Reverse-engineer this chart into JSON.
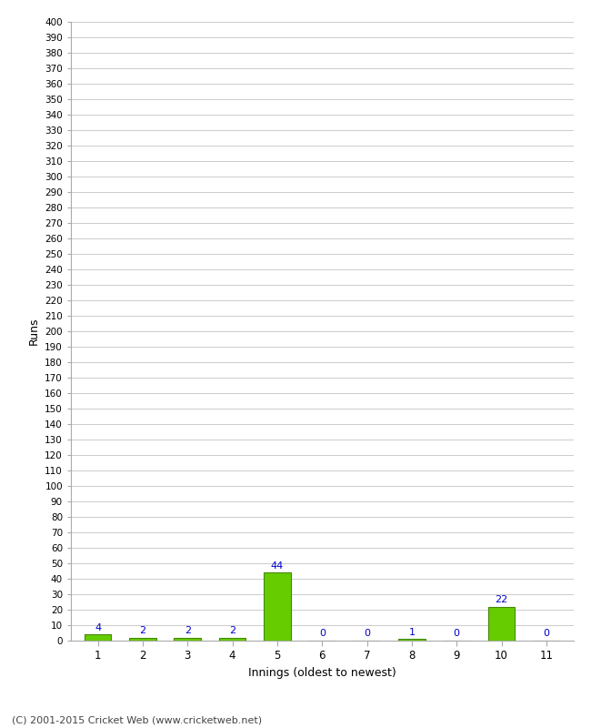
{
  "xlabel": "Innings (oldest to newest)",
  "ylabel": "Runs",
  "categories": [
    "1",
    "2",
    "3",
    "4",
    "5",
    "6",
    "7",
    "8",
    "9",
    "10",
    "11"
  ],
  "values": [
    4,
    2,
    2,
    2,
    44,
    0,
    0,
    1,
    0,
    22,
    0
  ],
  "bar_color": "#66cc00",
  "bar_edge_color": "#448800",
  "label_color": "#0000cc",
  "ylim": [
    0,
    400
  ],
  "background_color": "#ffffff",
  "grid_color": "#cccccc",
  "footer": "(C) 2001-2015 Cricket Web (www.cricketweb.net)"
}
